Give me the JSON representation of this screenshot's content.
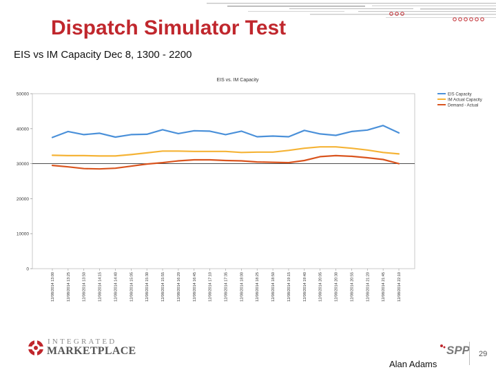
{
  "slide": {
    "title": "Dispatch Simulator Test",
    "subtitle": "EIS vs IM Capacity Dec 8, 1300 - 2200",
    "presenter": "Alan Adams",
    "page_number": "29",
    "logo": {
      "line1": "INTEGRATED",
      "line2": "MARKETPLACE"
    },
    "spp_logo_text": "SPP",
    "colors": {
      "title": "#c0272d",
      "accent": "#c0272d"
    }
  },
  "chart_data": {
    "type": "line",
    "title": "EIS vs. IM Capacity",
    "xlabel": "",
    "ylabel": "",
    "ylim": [
      0,
      50000
    ],
    "yticks": [
      "50000",
      "40000",
      "30000",
      "20000",
      "10000",
      "0"
    ],
    "grid": false,
    "legend_position": "top-right",
    "categories": [
      "12/08/2014 13:00",
      "12/08/2014 13:25",
      "12/08/2014 13:50",
      "12/08/2014 14:15",
      "12/08/2014 14:40",
      "12/08/2014 15:05",
      "12/08/2014 15:30",
      "12/08/2014 15:55",
      "12/08/2014 16:20",
      "12/08/2014 16:45",
      "12/08/2014 17:10",
      "12/08/2014 17:35",
      "12/08/2014 18:00",
      "12/08/2014 18:25",
      "12/08/2014 18:50",
      "12/08/2014 19:15",
      "12/08/2014 19:40",
      "12/08/2014 20:05",
      "12/08/2014 20:30",
      "12/08/2014 20:55",
      "12/08/2014 21:20",
      "12/08/2014 21:45",
      "12/08/2014 22:10"
    ],
    "series": [
      {
        "name": "EIS Capacity",
        "color": "#4a90d9",
        "values": [
          37500,
          39200,
          38300,
          38700,
          37600,
          38300,
          38400,
          39700,
          38600,
          39400,
          39300,
          38300,
          39300,
          37700,
          37900,
          37700,
          39500,
          38500,
          38100,
          39200,
          39600,
          40900,
          38800
        ]
      },
      {
        "name": "IM Actual Capacity",
        "color": "#f5b335",
        "values": [
          32400,
          32300,
          32300,
          32200,
          32200,
          32600,
          33100,
          33600,
          33600,
          33500,
          33500,
          33500,
          33200,
          33300,
          33300,
          33800,
          34400,
          34800,
          34800,
          34400,
          33900,
          33200,
          32800
        ]
      },
      {
        "name": "Demand - Actual",
        "color": "#d9541e",
        "values": [
          29500,
          29100,
          28600,
          28500,
          28700,
          29300,
          29900,
          30300,
          30800,
          31100,
          31100,
          30900,
          30800,
          30500,
          30400,
          30300,
          30900,
          32000,
          32300,
          32100,
          31700,
          31200,
          30000
        ]
      }
    ]
  }
}
